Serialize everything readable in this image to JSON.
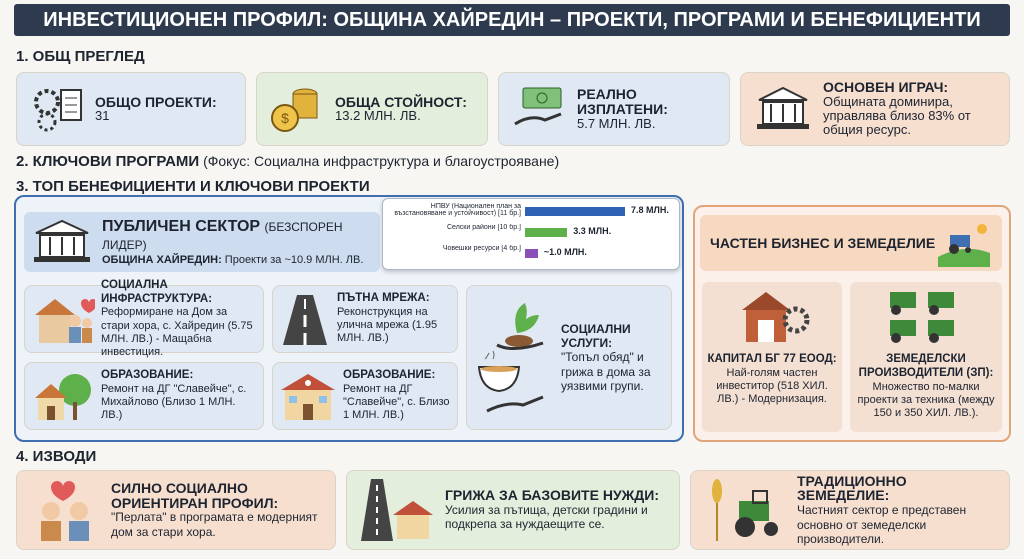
{
  "header": {
    "title": "ИНВЕСТИЦИОНЕН ПРОФИЛ: ОБЩИНА ХАЙРЕДИН – ПРОЕКТИ, ПРОГРАМИ И БЕНЕФИЦИЕНТИ"
  },
  "overview": {
    "heading": "1. ОБЩ ПРЕГЛЕД",
    "cards": [
      {
        "label": "ОБЩО ПРОЕКТИ:",
        "value": "31"
      },
      {
        "label": "ОБЩА СТОЙНОСТ:",
        "value": "13.2 МЛН. ЛВ."
      },
      {
        "label": "РЕАЛНО ИЗПЛАТЕНИ:",
        "value": "5.7 МЛН. ЛВ."
      },
      {
        "label": "ОСНОВЕН ИГРАЧ:",
        "value": "Общината доминира, управлява близо 83% от общия ресурс."
      }
    ]
  },
  "programs": {
    "heading": "2. КЛЮЧОВИ ПРОГРАМИ",
    "focus": "(Фокус: Социална инфраструктура и благоустрояване)",
    "categories": [
      "НПВУ (Национален план за възстановяване и устойчивост) [11 бр.]",
      "Селски райони [10 бр.]",
      "Човешки ресурси [4 бр.]"
    ],
    "values": [
      7.8,
      3.3,
      1.0
    ],
    "value_labels": [
      "7.8 МЛН.",
      "3.3 МЛН.",
      "~1.0 МЛН."
    ],
    "colors": [
      "#2f62b5",
      "#5db04a",
      "#8a4fb8"
    ]
  },
  "beneficiaries": {
    "heading": "3. ТОП БЕНЕФИЦИЕНТИ И КЛЮЧОВИ ПРОЕКТИ",
    "public": {
      "title": "ПУБЛИЧЕН СЕКТОР",
      "note": "(БЕЗСПОРЕН ЛИДЕР)",
      "sub_label": "ОБЩИНА ХАЙРЕДИН:",
      "sub_text": "Проекти за ~10.9 МЛН. ЛВ.",
      "projects": [
        {
          "title": "СОЦИАЛНА ИНФРАСТРУКТУРА:",
          "text": "Реформиране на Дом за стари хора, с. Хайредин (5.75 МЛН. ЛВ.) - Мащабна инвестиция."
        },
        {
          "title": "ПЪТНА МРЕЖА:",
          "text": "Реконструкция на улична мрежа (1.95 МЛН. ЛВ.)"
        },
        {
          "title": "ОБРАЗОВАНИЕ:",
          "text": "Ремонт на ДГ \"Славейче\", с. Михайлово (Близо 1 МЛН. ЛВ.)"
        },
        {
          "title": "ОБРАЗОВАНИЕ:",
          "text": "Ремонт на ДГ \"Славейче\", с. Близо 1 МЛН. ЛВ.)"
        },
        {
          "title": "СОЦИАЛНИ УСЛУГИ:",
          "text": "\"Топъл обяд\" и грижа в дома за уязвими групи."
        }
      ]
    },
    "private": {
      "title": "ЧАСТЕН БИЗНЕС И ЗЕМЕДЕЛИЕ",
      "cards": [
        {
          "title": "КАПИТАЛ БГ 77 ЕООД:",
          "text": "Най-голям частен инвеститор (518 ХИЛ. ЛВ.) - Модернизация."
        },
        {
          "title": "ЗЕМЕДЕЛСКИ ПРОИЗВОДИТЕЛИ (ЗП):",
          "text": "Множество по-малки проекти за техника (между 150 и 350 ХИЛ. ЛВ.)."
        }
      ]
    }
  },
  "conclusions": {
    "heading": "4. ИЗВОДИ",
    "cards": [
      {
        "title": "СИЛНО СОЦИАЛНО ОРИЕНТИРАН ПРОФИЛ:",
        "text": "\"Перлата\" в програмата е модерният дом за стари хора."
      },
      {
        "title": "ГРИЖА ЗА БАЗОВИТЕ НУЖДИ:",
        "text": "Усилия за пътища, детски градини и подкрепа за нуждаещите се."
      },
      {
        "title": "ТРАДИЦИОННО ЗЕМЕДЕЛИЕ:",
        "text": "Частният сектор е представен основно от земеделски производители."
      }
    ]
  }
}
